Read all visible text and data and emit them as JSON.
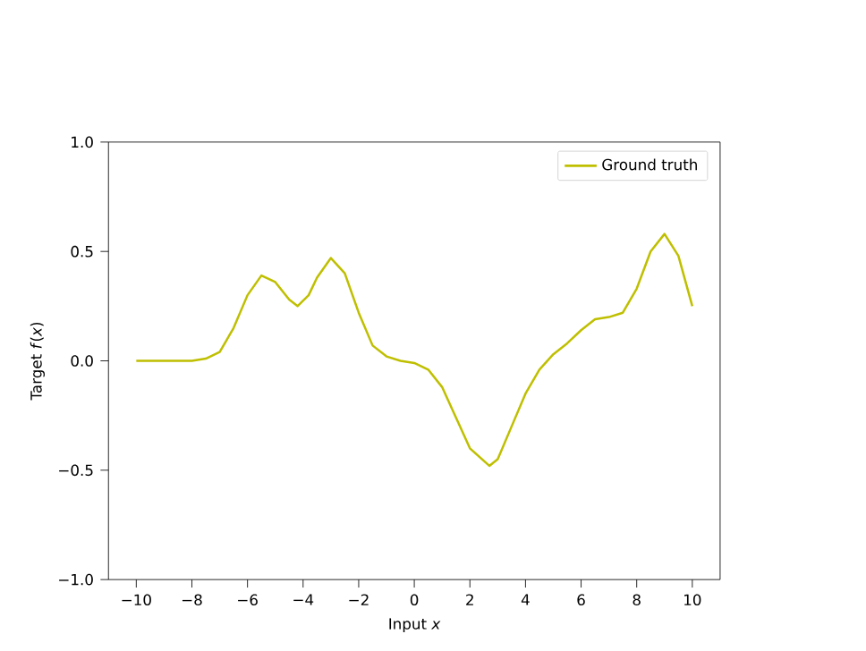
{
  "chart_data": {
    "type": "line",
    "xlabel": "Input *x*",
    "ylabel": "Target *f*(*x*)",
    "xlim": [
      -11,
      11
    ],
    "ylim": [
      -1.0,
      1.0
    ],
    "xticks": [
      {
        "value": -10,
        "label": "−10"
      },
      {
        "value": -8,
        "label": "−8"
      },
      {
        "value": -6,
        "label": "−6"
      },
      {
        "value": -4,
        "label": "−4"
      },
      {
        "value": -2,
        "label": "−2"
      },
      0,
      2,
      4,
      6,
      8,
      10
    ],
    "yticks": [
      {
        "value": -1.0,
        "label": "−1.0"
      },
      {
        "value": -0.5,
        "label": "−0.5"
      },
      {
        "value": 0.0,
        "label": "0.0"
      },
      {
        "value": 0.5,
        "label": "0.5"
      },
      {
        "value": 1.0,
        "label": "1.0"
      }
    ],
    "legend": "top right",
    "grid": false,
    "marker": "none",
    "line_style": "solid",
    "series": [
      {
        "name": "Ground truth",
        "color": "#bfbf00",
        "x": [
          -10,
          -9,
          -8,
          -7.5,
          -7,
          -6.5,
          -6,
          -5.5,
          -5,
          -4.5,
          -4.2,
          -3.8,
          -3.5,
          -3,
          -2.5,
          -2,
          -1.5,
          -1,
          -0.5,
          0,
          0.5,
          1,
          1.5,
          2,
          2.7,
          3,
          3.5,
          4,
          4.5,
          5,
          5.5,
          6,
          6.5,
          7,
          7.5,
          8,
          8.5,
          9,
          9.5,
          10
        ],
        "values": [
          0,
          0,
          0,
          0.01,
          0.04,
          0.15,
          0.3,
          0.39,
          0.36,
          0.28,
          0.25,
          0.3,
          0.38,
          0.47,
          0.4,
          0.22,
          0.07,
          0.02,
          0.0,
          -0.01,
          -0.04,
          -0.12,
          -0.26,
          -0.4,
          -0.48,
          -0.45,
          -0.3,
          -0.15,
          -0.04,
          0.03,
          0.08,
          0.14,
          0.19,
          0.2,
          0.22,
          0.33,
          0.5,
          0.58,
          0.48,
          0.25
        ]
      }
    ]
  }
}
